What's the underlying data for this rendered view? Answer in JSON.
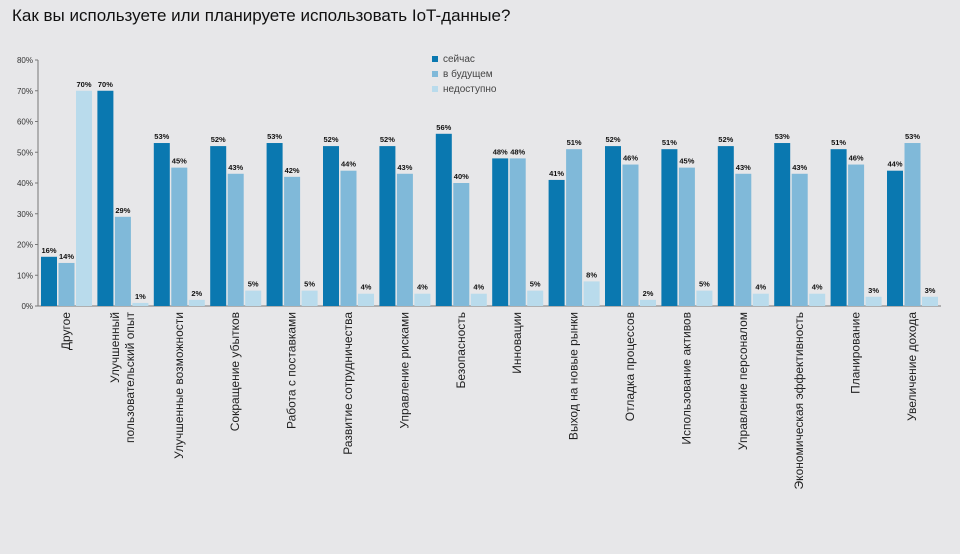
{
  "title": "Как вы используете или планируете использовать IoT-данные?",
  "chart_data": {
    "type": "bar",
    "title": "Как вы используете или планируете использовать IoT-данные?",
    "categories": [
      "Другое",
      "Улучшенный\nпользовательский опыт",
      "Улучшенные возможности",
      "Сокращение убытков",
      "Работа с поставками",
      "Развитие сотрудничества",
      "Управление рисками",
      "Безопасность",
      "Инновации",
      "Выход на новые рынки",
      "Отладка процессов",
      "Использование активов",
      "Управление персоналом",
      "Экономическая эффективность",
      "Планирование",
      "Увеличение дохода"
    ],
    "series": [
      {
        "name": "сейчас",
        "color": "#0a78b0",
        "values": [
          16,
          70,
          53,
          52,
          53,
          52,
          52,
          56,
          48,
          41,
          52,
          51,
          52,
          53,
          51,
          44
        ]
      },
      {
        "name": "в будущем",
        "color": "#80b9d9",
        "values": [
          14,
          29,
          45,
          43,
          42,
          44,
          43,
          40,
          48,
          51,
          46,
          45,
          43,
          43,
          46,
          53
        ]
      },
      {
        "name": "недоступно",
        "color": "#b9dbec",
        "values": [
          70,
          1,
          2,
          5,
          5,
          4,
          4,
          4,
          5,
          8,
          2,
          5,
          4,
          4,
          3,
          3
        ]
      }
    ],
    "yticks": [
      "0%",
      "10%",
      "20%",
      "30%",
      "40%",
      "50%",
      "60%",
      "70%",
      "80%"
    ],
    "ylim": [
      0,
      80
    ],
    "unit": "%",
    "legend": "top-center",
    "grid": false
  }
}
